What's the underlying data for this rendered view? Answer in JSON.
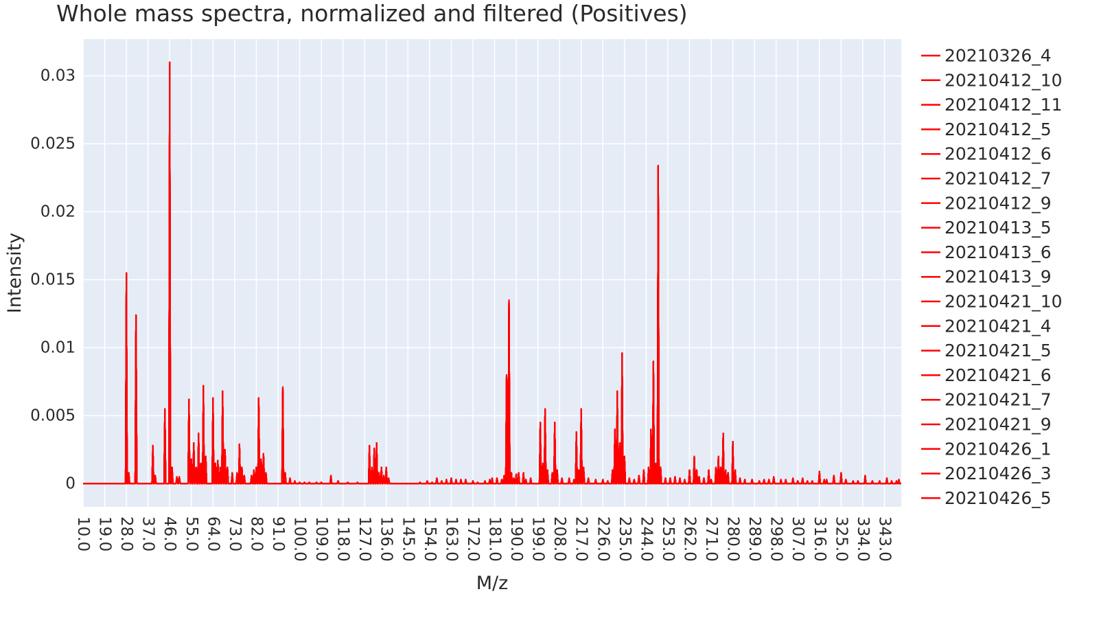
{
  "chart_data": {
    "type": "line",
    "title": "Whole mass spectra, normalized and filtered (Positives)",
    "xlabel": "M/z",
    "ylabel": "Intensity",
    "xlim": [
      10,
      350
    ],
    "ylim": [
      -0.0017,
      0.0327
    ],
    "x_ticks": [
      "10.0",
      "19.0",
      "28.0",
      "37.0",
      "46.0",
      "55.0",
      "64.0",
      "73.0",
      "82.0",
      "91.0",
      "100.0",
      "109.0",
      "118.0",
      "127.0",
      "136.0",
      "145.0",
      "154.0",
      "163.0",
      "172.0",
      "181.0",
      "190.0",
      "199.0",
      "208.0",
      "217.0",
      "226.0",
      "235.0",
      "244.0",
      "253.0",
      "262.0",
      "271.0",
      "280.0",
      "289.0",
      "298.0",
      "307.0",
      "316.0",
      "325.0",
      "334.0",
      "343.0"
    ],
    "y_ticks": [
      {
        "value": 0,
        "label": "0"
      },
      {
        "value": 0.005,
        "label": "0.005"
      },
      {
        "value": 0.01,
        "label": "0.01"
      },
      {
        "value": 0.015,
        "label": "0.015"
      },
      {
        "value": 0.02,
        "label": "0.02"
      },
      {
        "value": 0.025,
        "label": "0.025"
      },
      {
        "value": 0.03,
        "label": "0.03"
      }
    ],
    "grid": true,
    "legend_position": "right",
    "series_color": "#ff0000",
    "background_color": "#e5ecf6",
    "series": [
      {
        "name": "20210326_4"
      },
      {
        "name": "20210412_10"
      },
      {
        "name": "20210412_11"
      },
      {
        "name": "20210412_5"
      },
      {
        "name": "20210412_6"
      },
      {
        "name": "20210412_7"
      },
      {
        "name": "20210412_9"
      },
      {
        "name": "20210413_5"
      },
      {
        "name": "20210413_6"
      },
      {
        "name": "20210413_9"
      },
      {
        "name": "20210421_10"
      },
      {
        "name": "20210421_4"
      },
      {
        "name": "20210421_5"
      },
      {
        "name": "20210421_6"
      },
      {
        "name": "20210421_7"
      },
      {
        "name": "20210421_9"
      },
      {
        "name": "20210426_1"
      },
      {
        "name": "20210426_3"
      },
      {
        "name": "20210426_5"
      }
    ],
    "peaks": [
      [
        28.0,
        0.0155
      ],
      [
        29.0,
        0.0008
      ],
      [
        32.0,
        0.0124
      ],
      [
        39.0,
        0.0028
      ],
      [
        40.0,
        0.0006
      ],
      [
        44.0,
        0.0055
      ],
      [
        46.0,
        0.031
      ],
      [
        47.0,
        0.0012
      ],
      [
        49.0,
        0.0005
      ],
      [
        50.0,
        0.0005
      ],
      [
        54.0,
        0.0062
      ],
      [
        55.0,
        0.0018
      ],
      [
        56.0,
        0.003
      ],
      [
        57.0,
        0.0012
      ],
      [
        58.0,
        0.0037
      ],
      [
        59.0,
        0.0015
      ],
      [
        60.0,
        0.0072
      ],
      [
        61.0,
        0.002
      ],
      [
        64.0,
        0.0063
      ],
      [
        65.0,
        0.0015
      ],
      [
        66.0,
        0.0017
      ],
      [
        67.0,
        0.0012
      ],
      [
        68.0,
        0.0068
      ],
      [
        69.0,
        0.0025
      ],
      [
        70.0,
        0.0012
      ],
      [
        72.0,
        0.0008
      ],
      [
        74.0,
        0.0008
      ],
      [
        75.0,
        0.0029
      ],
      [
        76.0,
        0.0012
      ],
      [
        77.0,
        0.0006
      ],
      [
        80.0,
        0.0006
      ],
      [
        81.0,
        0.001
      ],
      [
        82.0,
        0.0012
      ],
      [
        83.0,
        0.0063
      ],
      [
        84.0,
        0.0018
      ],
      [
        85.0,
        0.0022
      ],
      [
        86.0,
        0.0008
      ],
      [
        93.0,
        0.0071
      ],
      [
        94.0,
        0.0008
      ],
      [
        96.0,
        0.0004
      ],
      [
        98.0,
        0.0002
      ],
      [
        100.0,
        0.0001
      ],
      [
        102.0,
        0.0001
      ],
      [
        104.0,
        0.0001
      ],
      [
        107.0,
        0.0001
      ],
      [
        109.0,
        0.0001
      ],
      [
        113.0,
        0.0006
      ],
      [
        116.0,
        0.0002
      ],
      [
        120.0,
        0.0001
      ],
      [
        124.0,
        0.0001
      ],
      [
        129.0,
        0.0028
      ],
      [
        130.0,
        0.0012
      ],
      [
        131.0,
        0.0026
      ],
      [
        132.0,
        0.003
      ],
      [
        133.0,
        0.0008
      ],
      [
        134.0,
        0.0012
      ],
      [
        135.0,
        0.0006
      ],
      [
        136.0,
        0.0012
      ],
      [
        137.0,
        0.0004
      ],
      [
        150.0,
        0.0001
      ],
      [
        153.0,
        0.0002
      ],
      [
        155.0,
        0.0001
      ],
      [
        157.0,
        0.0004
      ],
      [
        159.0,
        0.0002
      ],
      [
        161.0,
        0.0003
      ],
      [
        163.0,
        0.0004
      ],
      [
        165.0,
        0.0003
      ],
      [
        167.0,
        0.0003
      ],
      [
        169.0,
        0.0003
      ],
      [
        172.0,
        0.0002
      ],
      [
        174.0,
        0.0001
      ],
      [
        177.0,
        0.0002
      ],
      [
        179.0,
        0.0003
      ],
      [
        180.0,
        0.0004
      ],
      [
        182.0,
        0.0004
      ],
      [
        184.0,
        0.0003
      ],
      [
        185.0,
        0.0006
      ],
      [
        186.0,
        0.008
      ],
      [
        187.0,
        0.0135
      ],
      [
        188.0,
        0.0008
      ],
      [
        189.0,
        0.0004
      ],
      [
        190.0,
        0.0007
      ],
      [
        191.0,
        0.0008
      ],
      [
        193.0,
        0.0008
      ],
      [
        194.0,
        0.0003
      ],
      [
        196.0,
        0.0004
      ],
      [
        200.0,
        0.0045
      ],
      [
        201.0,
        0.0015
      ],
      [
        202.0,
        0.0055
      ],
      [
        203.0,
        0.001
      ],
      [
        205.0,
        0.0008
      ],
      [
        206.0,
        0.0045
      ],
      [
        207.0,
        0.001
      ],
      [
        209.0,
        0.0004
      ],
      [
        212.0,
        0.0004
      ],
      [
        214.0,
        0.0003
      ],
      [
        215.0,
        0.0038
      ],
      [
        216.0,
        0.001
      ],
      [
        217.0,
        0.0055
      ],
      [
        218.0,
        0.0012
      ],
      [
        220.0,
        0.0004
      ],
      [
        223.0,
        0.0003
      ],
      [
        226.0,
        0.0003
      ],
      [
        228.0,
        0.0002
      ],
      [
        230.0,
        0.001
      ],
      [
        231.0,
        0.004
      ],
      [
        232.0,
        0.0068
      ],
      [
        233.0,
        0.003
      ],
      [
        234.0,
        0.0096
      ],
      [
        235.0,
        0.002
      ],
      [
        237.0,
        0.0004
      ],
      [
        239.0,
        0.0003
      ],
      [
        241.0,
        0.0006
      ],
      [
        243.0,
        0.001
      ],
      [
        245.0,
        0.0012
      ],
      [
        246.0,
        0.004
      ],
      [
        247.0,
        0.009
      ],
      [
        248.0,
        0.0015
      ],
      [
        249.0,
        0.0234
      ],
      [
        250.0,
        0.0012
      ],
      [
        252.0,
        0.0004
      ],
      [
        254.0,
        0.0004
      ],
      [
        256.0,
        0.0005
      ],
      [
        258.0,
        0.0004
      ],
      [
        260.0,
        0.0003
      ],
      [
        262.0,
        0.001
      ],
      [
        264.0,
        0.002
      ],
      [
        265.0,
        0.001
      ],
      [
        266.0,
        0.0005
      ],
      [
        268.0,
        0.0004
      ],
      [
        270.0,
        0.001
      ],
      [
        271.0,
        0.0003
      ],
      [
        273.0,
        0.0012
      ],
      [
        274.0,
        0.002
      ],
      [
        275.0,
        0.0012
      ],
      [
        276.0,
        0.0037
      ],
      [
        277.0,
        0.001
      ],
      [
        278.0,
        0.0008
      ],
      [
        280.0,
        0.0031
      ],
      [
        281.0,
        0.001
      ],
      [
        283.0,
        0.0004
      ],
      [
        285.0,
        0.0003
      ],
      [
        288.0,
        0.0003
      ],
      [
        291.0,
        0.0002
      ],
      [
        293.0,
        0.0003
      ],
      [
        295.0,
        0.0003
      ],
      [
        297.0,
        0.0005
      ],
      [
        300.0,
        0.0003
      ],
      [
        302.0,
        0.0003
      ],
      [
        305.0,
        0.0004
      ],
      [
        307.0,
        0.0002
      ],
      [
        309.0,
        0.0004
      ],
      [
        311.0,
        0.0002
      ],
      [
        313.0,
        0.0002
      ],
      [
        316.0,
        0.0009
      ],
      [
        318.0,
        0.0003
      ],
      [
        319.0,
        0.0003
      ],
      [
        322.0,
        0.0006
      ],
      [
        325.0,
        0.0008
      ],
      [
        327.0,
        0.0003
      ],
      [
        330.0,
        0.0002
      ],
      [
        332.0,
        0.0002
      ],
      [
        335.0,
        0.0006
      ],
      [
        338.0,
        0.0002
      ],
      [
        341.0,
        0.0002
      ],
      [
        344.0,
        0.0004
      ],
      [
        346.0,
        0.0002
      ],
      [
        348.0,
        0.0002
      ],
      [
        349.0,
        0.0003
      ]
    ]
  }
}
